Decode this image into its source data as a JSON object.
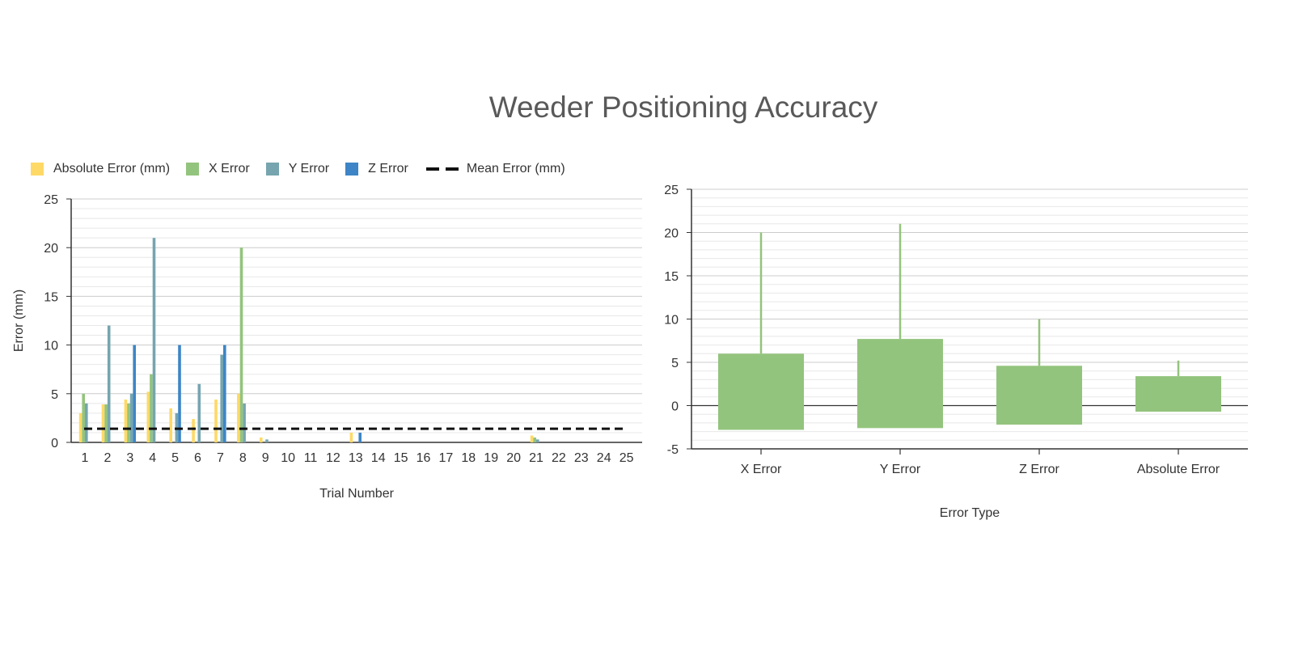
{
  "title": "Weeder Positioning Accuracy",
  "chart_data": [
    {
      "type": "bar",
      "xlabel": "Trial Number",
      "ylabel": "Error (mm)",
      "ylim": [
        0,
        25
      ],
      "yticks": [
        0,
        5,
        10,
        15,
        20,
        25
      ],
      "categories": [
        "1",
        "2",
        "3",
        "4",
        "5",
        "6",
        "7",
        "8",
        "9",
        "10",
        "11",
        "12",
        "13",
        "14",
        "15",
        "16",
        "17",
        "18",
        "19",
        "20",
        "21",
        "22",
        "23",
        "24",
        "25"
      ],
      "series": [
        {
          "name": "Absolute Error (mm)",
          "color": "#ffd966",
          "values": [
            3,
            3.9,
            4.4,
            5.2,
            3.5,
            2.4,
            4.4,
            5,
            0.5,
            0,
            0,
            0,
            1,
            0,
            0,
            0,
            0,
            0,
            0,
            0,
            0.7,
            0,
            0,
            0,
            0
          ]
        },
        {
          "name": "X Error",
          "color": "#93c47d",
          "values": [
            5,
            3.9,
            4,
            7,
            0,
            0,
            0,
            20,
            0,
            0,
            0,
            0,
            0,
            0,
            0,
            0,
            0,
            0,
            0,
            0,
            0.5,
            0,
            0,
            0,
            0
          ]
        },
        {
          "name": "Y Error",
          "color": "#76a5af",
          "values": [
            4,
            12,
            5,
            21,
            3,
            6,
            9,
            4,
            0.3,
            0,
            0,
            0,
            0,
            0,
            0,
            0,
            0,
            0,
            0,
            0,
            0.3,
            0,
            0,
            0,
            0
          ]
        },
        {
          "name": "Z Error",
          "color": "#3d85c6",
          "values": [
            0,
            0,
            10,
            0,
            10,
            0,
            10,
            0,
            0,
            0,
            0,
            0,
            1,
            0,
            0,
            0,
            0,
            0,
            0,
            0,
            0,
            0,
            0,
            0,
            0
          ]
        }
      ],
      "mean_line": {
        "name": "Mean Error (mm)",
        "value": 1.4,
        "color": "#111111"
      },
      "legend_position": "top",
      "grid": true
    },
    {
      "type": "bar",
      "xlabel": "Error Type",
      "ylabel": "",
      "ylim": [
        -5,
        25
      ],
      "yticks": [
        -5,
        0,
        5,
        10,
        15,
        20,
        25
      ],
      "categories": [
        "X Error",
        "Y Error",
        "Z Error",
        "Absolute Error"
      ],
      "color": "#93c47d",
      "box_low": [
        -2.8,
        -2.6,
        -2.2,
        -0.7
      ],
      "box_high": [
        6,
        7.7,
        4.6,
        3.4
      ],
      "whisker_high": [
        20,
        21,
        10,
        5.2
      ],
      "grid": true
    }
  ]
}
